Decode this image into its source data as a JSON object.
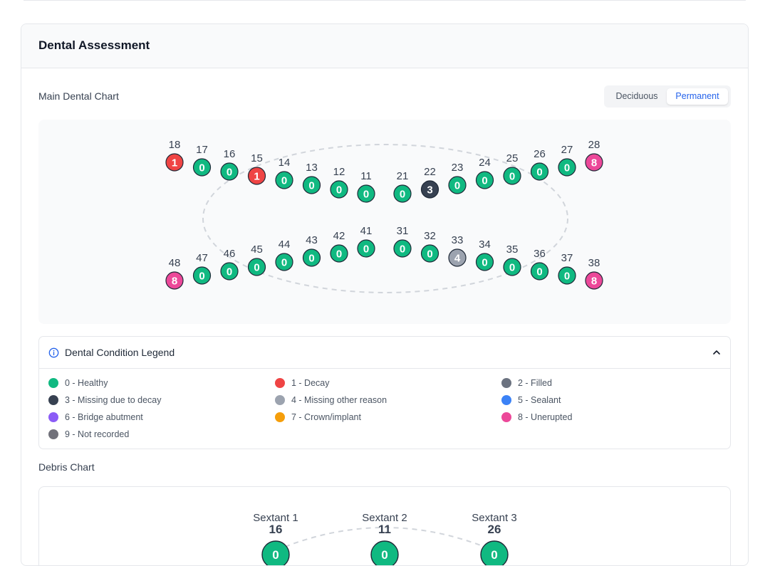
{
  "assessment": {
    "title": "Dental Assessment",
    "main_chart_label": "Main Dental Chart",
    "toggle": {
      "deciduous": "Deciduous",
      "permanent": "Permanent",
      "selected": "Permanent"
    },
    "debris_chart_label": "Debris Chart"
  },
  "colors": {
    "healthy": "#10b981",
    "decay": "#ef4444",
    "filled": "#6b7280",
    "missing_decay": "#374151",
    "missing_other": "#9ca3af",
    "sealant": "#3b82f6",
    "bridge": "#8b5cf6",
    "crown": "#f59e0b",
    "unerupted": "#ec4899",
    "not_recorded": "#71717a"
  },
  "teeth": {
    "upper": [
      {
        "num": "18",
        "code": "1"
      },
      {
        "num": "17",
        "code": "0"
      },
      {
        "num": "16",
        "code": "0"
      },
      {
        "num": "15",
        "code": "1"
      },
      {
        "num": "14",
        "code": "0"
      },
      {
        "num": "13",
        "code": "0"
      },
      {
        "num": "12",
        "code": "0"
      },
      {
        "num": "11",
        "code": "0"
      },
      {
        "num": "21",
        "code": "0"
      },
      {
        "num": "22",
        "code": "3"
      },
      {
        "num": "23",
        "code": "0"
      },
      {
        "num": "24",
        "code": "0"
      },
      {
        "num": "25",
        "code": "0"
      },
      {
        "num": "26",
        "code": "0"
      },
      {
        "num": "27",
        "code": "0"
      },
      {
        "num": "28",
        "code": "8"
      }
    ],
    "lower": [
      {
        "num": "48",
        "code": "8"
      },
      {
        "num": "47",
        "code": "0"
      },
      {
        "num": "46",
        "code": "0"
      },
      {
        "num": "45",
        "code": "0"
      },
      {
        "num": "44",
        "code": "0"
      },
      {
        "num": "43",
        "code": "0"
      },
      {
        "num": "42",
        "code": "0"
      },
      {
        "num": "41",
        "code": "0"
      },
      {
        "num": "31",
        "code": "0"
      },
      {
        "num": "32",
        "code": "0"
      },
      {
        "num": "33",
        "code": "4"
      },
      {
        "num": "34",
        "code": "0"
      },
      {
        "num": "35",
        "code": "0"
      },
      {
        "num": "36",
        "code": "0"
      },
      {
        "num": "37",
        "code": "0"
      },
      {
        "num": "38",
        "code": "8"
      }
    ]
  },
  "legend": {
    "title": "Dental Condition Legend",
    "items": [
      {
        "label": "0 - Healthy",
        "color": "#10b981"
      },
      {
        "label": "1 - Decay",
        "color": "#ef4444"
      },
      {
        "label": "2 - Filled",
        "color": "#6b7280"
      },
      {
        "label": "3 - Missing due to decay",
        "color": "#374151"
      },
      {
        "label": "4 - Missing other reason",
        "color": "#9ca3af"
      },
      {
        "label": "5 - Sealant",
        "color": "#3b82f6"
      },
      {
        "label": "6 - Bridge abutment",
        "color": "#8b5cf6"
      },
      {
        "label": "7 - Crown/implant",
        "color": "#f59e0b"
      },
      {
        "label": "8 - Unerupted",
        "color": "#ec4899"
      },
      {
        "label": "9 - Not recorded",
        "color": "#71717a"
      }
    ]
  },
  "debris": {
    "sextants": [
      {
        "label": "Sextant 1",
        "tooth": "16",
        "code": "0"
      },
      {
        "label": "Sextant 2",
        "tooth": "11",
        "code": "0"
      },
      {
        "label": "Sextant 3",
        "tooth": "26",
        "code": "0"
      }
    ]
  }
}
